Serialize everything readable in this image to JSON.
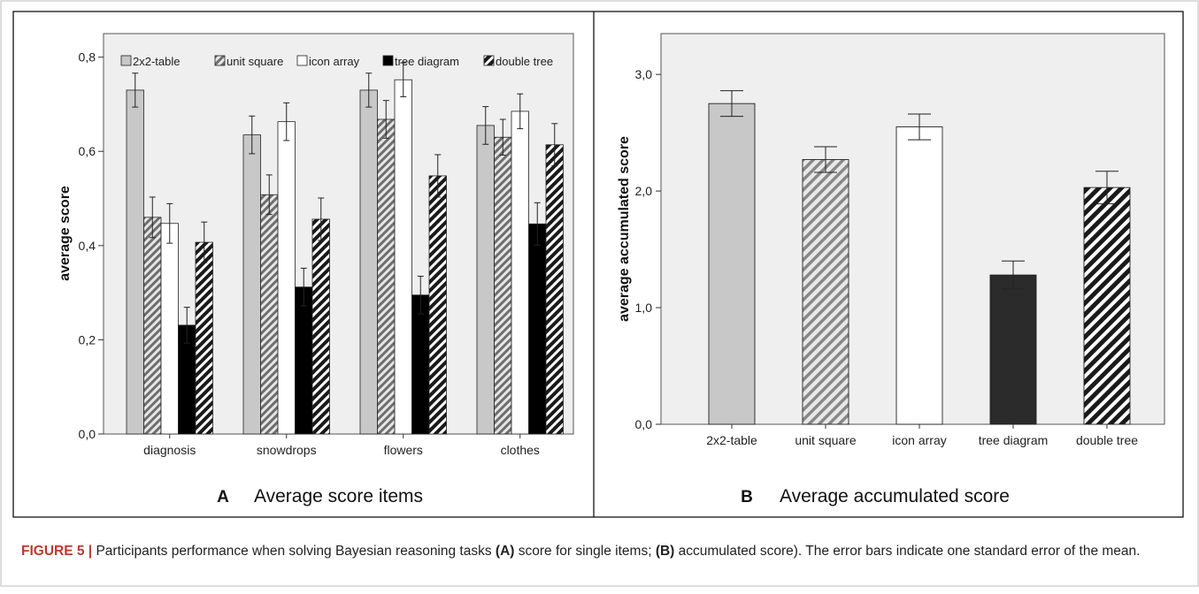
{
  "figure": {
    "caption_label": "FIGURE 5 |",
    "caption_part1": " Participants performance when solving Bayesian reasoning tasks ",
    "caption_bold_a": "(A)",
    "caption_part2": " score for single items; ",
    "caption_bold_b": "(B)",
    "caption_part3": " accumulated score). The error bars indicate one standard error of the mean."
  },
  "colors": {
    "2x2-table": "#c8c8c8",
    "unit-square-hatch": "#9a9a9a",
    "icon-array": "#ffffff",
    "tree-diagram-a": "#000000",
    "tree-diagram-b": "#2b2b2b",
    "plot-background": "#efefef"
  },
  "chart_data": [
    {
      "type": "bar",
      "panel_letter": "A",
      "panel_title": "Average score items",
      "ylabel": "average score",
      "xlabel": "",
      "ylim": [
        0,
        0.85
      ],
      "yticks": [
        0.0,
        0.2,
        0.4,
        0.6,
        0.8
      ],
      "ytick_labels": [
        "0,0",
        "0,2",
        "0,4",
        "0,6",
        "0,8"
      ],
      "categories": [
        "diagnosis",
        "snowdrops",
        "flowers",
        "clothes"
      ],
      "legend_position": "top",
      "series": [
        {
          "name": "2x2-table",
          "values": [
            0.73,
            0.635,
            0.73,
            0.655
          ],
          "errors": [
            0.036,
            0.04,
            0.036,
            0.04
          ]
        },
        {
          "name": "unit square",
          "values": [
            0.46,
            0.508,
            0.668,
            0.63
          ],
          "errors": [
            0.043,
            0.042,
            0.04,
            0.038
          ]
        },
        {
          "name": "icon array",
          "values": [
            0.447,
            0.663,
            0.752,
            0.685
          ],
          "errors": [
            0.042,
            0.04,
            0.036,
            0.037
          ]
        },
        {
          "name": "tree diagram",
          "values": [
            0.231,
            0.312,
            0.295,
            0.446
          ],
          "errors": [
            0.038,
            0.04,
            0.04,
            0.045
          ]
        },
        {
          "name": "double tree",
          "values": [
            0.407,
            0.456,
            0.548,
            0.614
          ],
          "errors": [
            0.043,
            0.045,
            0.045,
            0.045
          ]
        }
      ]
    },
    {
      "type": "bar",
      "panel_letter": "B",
      "panel_title": "Average accumulated score",
      "ylabel": "average accumulated score",
      "xlabel": "",
      "ylim": [
        0,
        3.35
      ],
      "yticks": [
        0.0,
        1.0,
        2.0,
        3.0
      ],
      "ytick_labels": [
        "0,0",
        "1,0",
        "2,0",
        "3,0"
      ],
      "categories": [
        "2x2-table",
        "unit square",
        "icon array",
        "tree diagram",
        "double tree"
      ],
      "values": [
        2.75,
        2.27,
        2.55,
        1.28,
        2.03
      ],
      "errors": [
        0.11,
        0.11,
        0.11,
        0.12,
        0.14
      ]
    }
  ]
}
